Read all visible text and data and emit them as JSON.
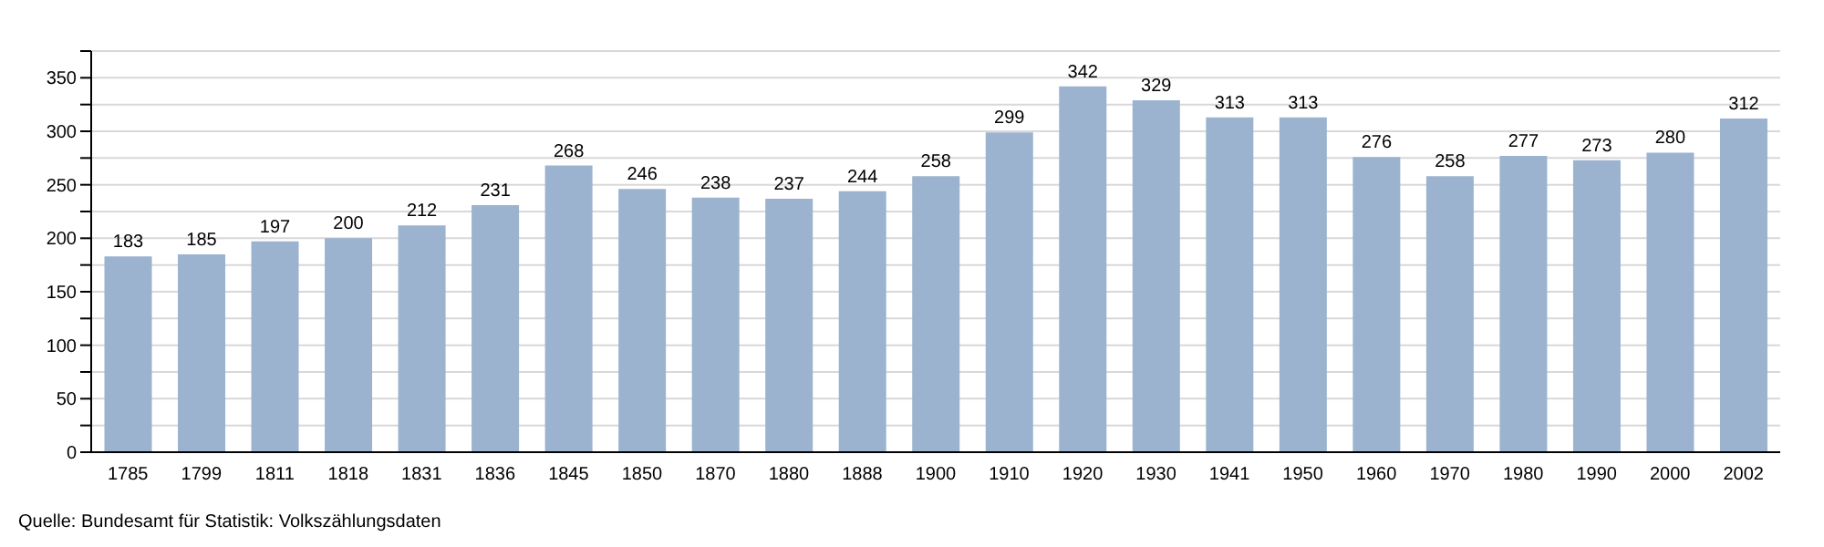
{
  "chart_data": {
    "type": "bar",
    "categories": [
      "1785",
      "1799",
      "1811",
      "1818",
      "1831",
      "1836",
      "1845",
      "1850",
      "1870",
      "1880",
      "1888",
      "1900",
      "1910",
      "1920",
      "1930",
      "1941",
      "1950",
      "1960",
      "1970",
      "1980",
      "1990",
      "2000",
      "2002"
    ],
    "values": [
      183,
      185,
      197,
      200,
      212,
      231,
      268,
      246,
      238,
      237,
      244,
      258,
      299,
      342,
      329,
      313,
      313,
      276,
      258,
      277,
      273,
      280,
      312
    ],
    "color": "#9bb3cf",
    "ylim": [
      0,
      375
    ],
    "yticks": [
      0,
      {
        "value": 25,
        "label": null
      },
      50,
      {
        "value": 75,
        "label": null
      },
      100,
      {
        "value": 125,
        "label": null
      },
      150,
      {
        "value": 175,
        "label": null
      },
      200,
      {
        "value": 225,
        "label": null
      },
      250,
      {
        "value": 275,
        "label": null
      },
      300,
      {
        "value": 325,
        "label": null
      },
      350,
      {
        "value": 375,
        "label": null
      }
    ],
    "grid": "y",
    "data_labels": true,
    "annotations": [
      "Quelle: Bundesamt für Statistik: Volkszählungsdaten"
    ]
  }
}
